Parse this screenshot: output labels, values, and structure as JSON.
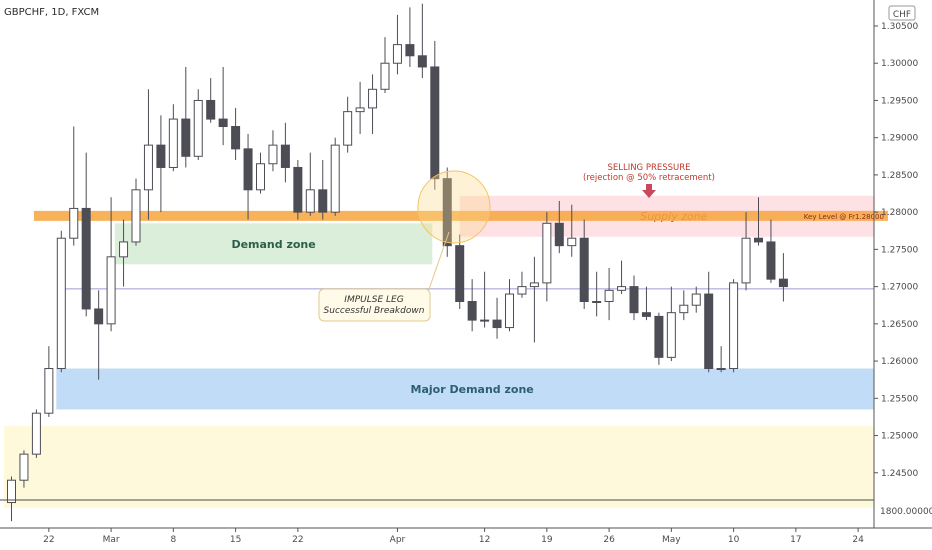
{
  "header": {
    "title": "GBPCHF, 1D, FXCM",
    "currency": "CHF"
  },
  "chart_data": {
    "type": "candlestick",
    "y_range": [
      1.2385,
      1.3085
    ],
    "y_ticks": [
      {
        "v": 1.305,
        "label": "1.30500"
      },
      {
        "v": 1.3,
        "label": "1.30000"
      },
      {
        "v": 1.295,
        "label": "1.29500"
      },
      {
        "v": 1.29,
        "label": "1.29000"
      },
      {
        "v": 1.285,
        "label": "1.28500"
      },
      {
        "v": 1.28,
        "label": "1.28000"
      },
      {
        "v": 1.275,
        "label": "1.27500"
      },
      {
        "v": 1.27,
        "label": "1.27000"
      },
      {
        "v": 1.265,
        "label": "1.26500"
      },
      {
        "v": 1.26,
        "label": "1.26000"
      },
      {
        "v": 1.255,
        "label": "1.25500"
      },
      {
        "v": 1.25,
        "label": "1.25000"
      },
      {
        "v": 1.245,
        "label": "1.24500"
      }
    ],
    "bottom_axis_label": "1800.00000",
    "x_ticks": [
      {
        "i": 3,
        "label": "22"
      },
      {
        "i": 8,
        "label": "Mar"
      },
      {
        "i": 13,
        "label": "8"
      },
      {
        "i": 18,
        "label": "15"
      },
      {
        "i": 23,
        "label": "22"
      },
      {
        "i": 31,
        "label": "Apr"
      },
      {
        "i": 38,
        "label": "12"
      },
      {
        "i": 43,
        "label": "19"
      },
      {
        "i": 48,
        "label": "26"
      },
      {
        "i": 53,
        "label": "May"
      },
      {
        "i": 58,
        "label": "10"
      },
      {
        "i": 63,
        "label": "17"
      },
      {
        "i": 68,
        "label": "24"
      }
    ],
    "candles": [
      {
        "i": 0,
        "o": 1.241,
        "h": 1.2445,
        "l": 1.2385,
        "c": 1.244
      },
      {
        "i": 1,
        "o": 1.244,
        "h": 1.248,
        "l": 1.243,
        "c": 1.2475
      },
      {
        "i": 2,
        "o": 1.2475,
        "h": 1.2535,
        "l": 1.247,
        "c": 1.253
      },
      {
        "i": 3,
        "o": 1.253,
        "h": 1.262,
        "l": 1.2525,
        "c": 1.259
      },
      {
        "i": 4,
        "o": 1.259,
        "h": 1.2775,
        "l": 1.2585,
        "c": 1.2765
      },
      {
        "i": 5,
        "o": 1.2765,
        "h": 1.2915,
        "l": 1.2755,
        "c": 1.2805
      },
      {
        "i": 6,
        "o": 1.2805,
        "h": 1.288,
        "l": 1.266,
        "c": 1.267
      },
      {
        "i": 7,
        "o": 1.267,
        "h": 1.2695,
        "l": 1.2575,
        "c": 1.265
      },
      {
        "i": 8,
        "o": 1.265,
        "h": 1.282,
        "l": 1.264,
        "c": 1.274
      },
      {
        "i": 9,
        "o": 1.274,
        "h": 1.279,
        "l": 1.27,
        "c": 1.276
      },
      {
        "i": 10,
        "o": 1.276,
        "h": 1.2845,
        "l": 1.2755,
        "c": 1.283
      },
      {
        "i": 11,
        "o": 1.283,
        "h": 1.2965,
        "l": 1.279,
        "c": 1.289
      },
      {
        "i": 12,
        "o": 1.289,
        "h": 1.293,
        "l": 1.28,
        "c": 1.286
      },
      {
        "i": 13,
        "o": 1.286,
        "h": 1.2945,
        "l": 1.2855,
        "c": 1.2925
      },
      {
        "i": 14,
        "o": 1.2925,
        "h": 1.2995,
        "l": 1.286,
        "c": 1.2875
      },
      {
        "i": 15,
        "o": 1.2875,
        "h": 1.2965,
        "l": 1.287,
        "c": 1.295
      },
      {
        "i": 16,
        "o": 1.295,
        "h": 1.298,
        "l": 1.292,
        "c": 1.2925
      },
      {
        "i": 17,
        "o": 1.2925,
        "h": 1.2995,
        "l": 1.289,
        "c": 1.2915
      },
      {
        "i": 18,
        "o": 1.2915,
        "h": 1.294,
        "l": 1.287,
        "c": 1.2885
      },
      {
        "i": 19,
        "o": 1.2885,
        "h": 1.2905,
        "l": 1.279,
        "c": 1.283
      },
      {
        "i": 20,
        "o": 1.283,
        "h": 1.288,
        "l": 1.2825,
        "c": 1.2865
      },
      {
        "i": 21,
        "o": 1.2865,
        "h": 1.291,
        "l": 1.2855,
        "c": 1.289
      },
      {
        "i": 22,
        "o": 1.289,
        "h": 1.292,
        "l": 1.284,
        "c": 1.286
      },
      {
        "i": 23,
        "o": 1.286,
        "h": 1.287,
        "l": 1.279,
        "c": 1.28
      },
      {
        "i": 24,
        "o": 1.28,
        "h": 1.288,
        "l": 1.2795,
        "c": 1.283
      },
      {
        "i": 25,
        "o": 1.283,
        "h": 1.287,
        "l": 1.279,
        "c": 1.28
      },
      {
        "i": 26,
        "o": 1.28,
        "h": 1.29,
        "l": 1.2795,
        "c": 1.289
      },
      {
        "i": 27,
        "o": 1.289,
        "h": 1.2955,
        "l": 1.288,
        "c": 1.2935
      },
      {
        "i": 28,
        "o": 1.2935,
        "h": 1.2975,
        "l": 1.2905,
        "c": 1.294
      },
      {
        "i": 29,
        "o": 1.294,
        "h": 1.2985,
        "l": 1.2905,
        "c": 1.2965
      },
      {
        "i": 30,
        "o": 1.2965,
        "h": 1.3035,
        "l": 1.296,
        "c": 1.3
      },
      {
        "i": 31,
        "o": 1.3,
        "h": 1.3065,
        "l": 1.2985,
        "c": 1.3025
      },
      {
        "i": 32,
        "o": 1.3025,
        "h": 1.3075,
        "l": 1.2995,
        "c": 1.301
      },
      {
        "i": 33,
        "o": 1.301,
        "h": 1.308,
        "l": 1.298,
        "c": 1.2995
      },
      {
        "i": 34,
        "o": 1.2995,
        "h": 1.303,
        "l": 1.283,
        "c": 1.2845
      },
      {
        "i": 35,
        "o": 1.2845,
        "h": 1.286,
        "l": 1.274,
        "c": 1.2755
      },
      {
        "i": 36,
        "o": 1.2755,
        "h": 1.277,
        "l": 1.267,
        "c": 1.268
      },
      {
        "i": 37,
        "o": 1.268,
        "h": 1.271,
        "l": 1.264,
        "c": 1.2655
      },
      {
        "i": 38,
        "o": 1.2655,
        "h": 1.272,
        "l": 1.2645,
        "c": 1.2655
      },
      {
        "i": 39,
        "o": 1.2655,
        "h": 1.2685,
        "l": 1.263,
        "c": 1.2645
      },
      {
        "i": 40,
        "o": 1.2645,
        "h": 1.271,
        "l": 1.264,
        "c": 1.269
      },
      {
        "i": 41,
        "o": 1.269,
        "h": 1.272,
        "l": 1.2685,
        "c": 1.27
      },
      {
        "i": 42,
        "o": 1.27,
        "h": 1.274,
        "l": 1.2625,
        "c": 1.2705
      },
      {
        "i": 43,
        "o": 1.2705,
        "h": 1.28,
        "l": 1.268,
        "c": 1.2785
      },
      {
        "i": 44,
        "o": 1.2785,
        "h": 1.2815,
        "l": 1.2745,
        "c": 1.2755
      },
      {
        "i": 45,
        "o": 1.2755,
        "h": 1.281,
        "l": 1.274,
        "c": 1.2765
      },
      {
        "i": 46,
        "o": 1.2765,
        "h": 1.279,
        "l": 1.267,
        "c": 1.268
      },
      {
        "i": 47,
        "o": 1.268,
        "h": 1.272,
        "l": 1.266,
        "c": 1.268
      },
      {
        "i": 48,
        "o": 1.268,
        "h": 1.2725,
        "l": 1.2655,
        "c": 1.2695
      },
      {
        "i": 49,
        "o": 1.2695,
        "h": 1.2735,
        "l": 1.269,
        "c": 1.27
      },
      {
        "i": 50,
        "o": 1.27,
        "h": 1.2715,
        "l": 1.2655,
        "c": 1.2665
      },
      {
        "i": 51,
        "o": 1.2665,
        "h": 1.27,
        "l": 1.2655,
        "c": 1.266
      },
      {
        "i": 52,
        "o": 1.266,
        "h": 1.2665,
        "l": 1.2595,
        "c": 1.2605
      },
      {
        "i": 53,
        "o": 1.2605,
        "h": 1.27,
        "l": 1.26,
        "c": 1.2665
      },
      {
        "i": 54,
        "o": 1.2665,
        "h": 1.2695,
        "l": 1.2655,
        "c": 1.2675
      },
      {
        "i": 55,
        "o": 1.2675,
        "h": 1.27,
        "l": 1.2665,
        "c": 1.269
      },
      {
        "i": 56,
        "o": 1.269,
        "h": 1.272,
        "l": 1.2585,
        "c": 1.259
      },
      {
        "i": 57,
        "o": 1.259,
        "h": 1.262,
        "l": 1.2585,
        "c": 1.259
      },
      {
        "i": 58,
        "o": 1.259,
        "h": 1.271,
        "l": 1.2585,
        "c": 1.2705
      },
      {
        "i": 59,
        "o": 1.2705,
        "h": 1.28,
        "l": 1.2695,
        "c": 1.2765
      },
      {
        "i": 60,
        "o": 1.2765,
        "h": 1.282,
        "l": 1.2755,
        "c": 1.276
      },
      {
        "i": 61,
        "o": 1.276,
        "h": 1.279,
        "l": 1.2705,
        "c": 1.271
      },
      {
        "i": 62,
        "o": 1.271,
        "h": 1.2745,
        "l": 1.268,
        "c": 1.27
      }
    ],
    "zones": [
      {
        "name": "bottom-yellow-zone",
        "i0": -0.6,
        "i1": 79,
        "top": 1.2513,
        "bottom": 1.2403,
        "color": "#fff9dc",
        "label": ""
      },
      {
        "name": "demand-zone",
        "i0": 8.3,
        "i1": 33.8,
        "top": 1.2785,
        "bottom": 1.273,
        "color": "#dbeeda",
        "label": "Demand zone",
        "label_color": "#2c5e4a"
      },
      {
        "name": "major-demand-zone",
        "i0": 3.6,
        "i1": 70.4,
        "top": 1.259,
        "bottom": 1.2535,
        "color": "#c1dcf6",
        "label": "Major Demand zone",
        "label_color": "#2c5e74"
      },
      {
        "name": "supply-zone",
        "i0": 36,
        "i1": 70.4,
        "top": 1.2822,
        "bottom": 1.2767,
        "color": "#fde1e4",
        "label": "Supply zone",
        "label_color": "#c0392b"
      }
    ],
    "key_level": {
      "price": 1.2795,
      "i0": 1.8,
      "i1": 70.4,
      "label": "Key Level @ Fr1.28000",
      "color": "#f6a43d"
    },
    "hline": {
      "price": 1.2697,
      "color": "#b8b6e0"
    },
    "annotations": {
      "selling_title": "SELLING PRESSURE",
      "selling_sub": "(rejection @ 50% retracement)",
      "impulse_title": "IMPULSE LEG",
      "impulse_sub": "Successful Breakdown"
    }
  }
}
